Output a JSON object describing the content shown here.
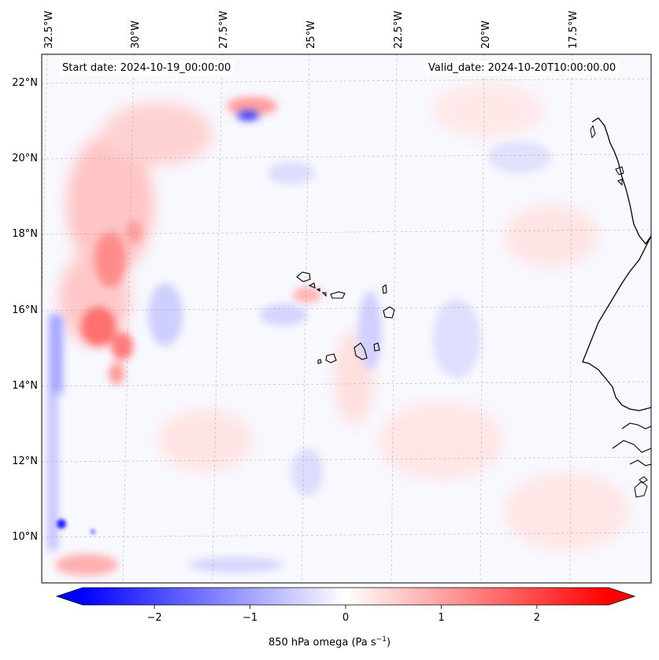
{
  "map": {
    "start_date": "Start date: 2024-10-19_00:00:00",
    "valid_date": "Valid_date: 2024-10-20T10:00:00.00",
    "lon_ticks": [
      "32.5°W",
      "30°W",
      "27.5°W",
      "25°W",
      "22.5°W",
      "20°W",
      "17.5°W"
    ],
    "lat_ticks": [
      "22°N",
      "20°N",
      "18°N",
      "16°N",
      "14°N",
      "12°N",
      "10°N"
    ],
    "colorbar": {
      "label_main": "850 hPa omega (Pa s",
      "label_exp": "−1",
      "label_end": ")",
      "ticks": [
        "−2",
        "−1",
        "0",
        "1",
        "2"
      ],
      "vmin": -2.75,
      "vmax": 2.75
    },
    "colors": {
      "negative": "#0000ff",
      "neutral": "#ffffff",
      "positive": "#ff0000",
      "coast": "#000000",
      "grid": "#aaaaaa"
    }
  }
}
